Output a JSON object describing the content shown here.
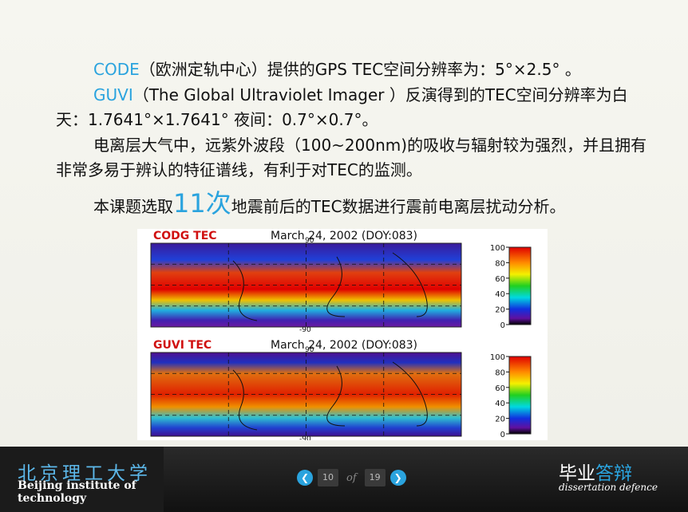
{
  "paragraphs": [
    {
      "highlight": "CODE",
      "text": "（欧洲定轨中心）提供的GPS TEC空间分辨率为：5°×2.5° 。"
    },
    {
      "highlight": "GUVI",
      "text": "（The Global Ultraviolet Imager ）反演得到的TEC空间分辨率为白天：1.7641°×1.7641° 夜间：0.7°×0.7°。"
    },
    {
      "text": "电离层大气中，远紫外波段（100~200nm)的吸收与辐射较为强烈，并且拥有非常多易于辨认的特征谱线，有利于对TEC的监测。"
    },
    {
      "before": "本课题选取",
      "highlight": "11次",
      "after": "地震前后的TEC数据进行震前电离层扰动分析。"
    }
  ],
  "figure": {
    "panels": [
      {
        "label": "CODG TEC",
        "date": "March 24, 2002 (DOY:083)",
        "lat_top": "90",
        "lat_bottom": "-90",
        "colorbar_ticks": [
          100,
          80,
          60,
          40,
          20,
          0
        ]
      },
      {
        "label": "GUVI TEC",
        "date": "March 24, 2002 (DOY:083)",
        "lat_top": "90",
        "lat_bottom": "-90",
        "colorbar_ticks": [
          100,
          80,
          60,
          40,
          20,
          0
        ]
      }
    ]
  },
  "footer": {
    "school_cn": "北京理工大学",
    "school_en": "Beijing institute of technology",
    "pager": {
      "current": "10",
      "separator": "of",
      "total": "19"
    },
    "brand_white": "毕业",
    "brand_blue": "答辩",
    "brand_en": "dissertation defence"
  }
}
